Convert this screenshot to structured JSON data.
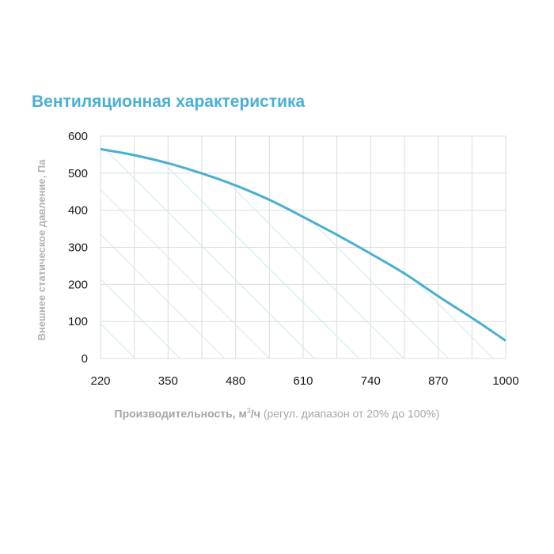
{
  "chart_data": {
    "type": "area",
    "title": "Вентиляционная характеристика",
    "ylabel": "Внешнее статическое давление, Па",
    "xlabel": {
      "main": "Производительность, м",
      "superscript": "3",
      "unit": "/ч",
      "note": " (регул. диапазон от 20% до 100%)"
    },
    "x_ticks": [
      220,
      350,
      480,
      610,
      740,
      870,
      1000
    ],
    "y_ticks": [
      0,
      100,
      200,
      300,
      400,
      500,
      600
    ],
    "xlim": [
      220,
      1000
    ],
    "ylim": [
      0,
      600
    ],
    "grid": true,
    "fill": "hatched",
    "series": [
      {
        "x": [
          220,
          280,
          350,
          420,
          480,
          550,
          610,
          680,
          740,
          810,
          870,
          940,
          1000
        ],
        "y": [
          565,
          550,
          527,
          497,
          467,
          425,
          382,
          330,
          283,
          225,
          168,
          105,
          48
        ]
      }
    ],
    "colors": {
      "title": "#4bafd4",
      "curve": "#4aaed3",
      "hatch": "#cfe8f1",
      "grid": "#dcdcdc"
    }
  }
}
